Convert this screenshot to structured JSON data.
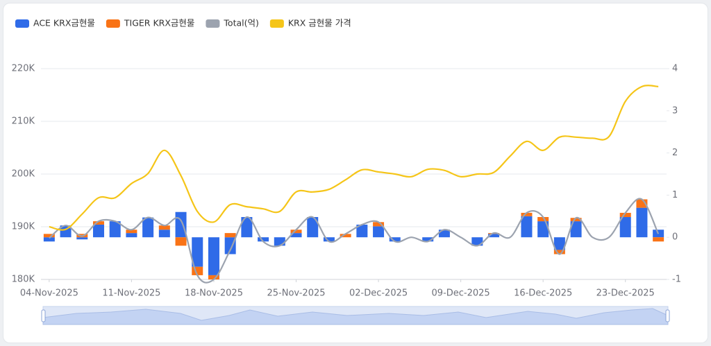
{
  "chart_data": {
    "type": "bar",
    "categories": [
      "04-Nov-2025",
      null,
      null,
      null,
      null,
      "11-Nov-2025",
      null,
      null,
      null,
      null,
      "18-Nov-2025",
      null,
      null,
      null,
      null,
      "25-Nov-2025",
      null,
      null,
      null,
      null,
      "02-Dec-2025",
      null,
      null,
      null,
      null,
      "09-Dec-2025",
      null,
      null,
      null,
      null,
      "16-Dec-2025",
      null,
      null,
      null,
      null,
      "23-Dec-2025",
      null,
      null
    ],
    "series": [
      {
        "name": "ACE KRX금현물",
        "type": "bar",
        "axis": "y2",
        "color": "#2f6be8",
        "values": [
          -0.1,
          0.28,
          -0.05,
          0.3,
          0.38,
          0.1,
          0.47,
          0.18,
          0.6,
          -0.7,
          -0.9,
          -0.4,
          0.48,
          -0.1,
          -0.2,
          0.1,
          0.48,
          -0.1,
          0,
          0.3,
          0.26,
          -0.1,
          0,
          -0.1,
          0.18,
          0,
          -0.2,
          0.08,
          0,
          0.5,
          0.38,
          -0.3,
          0.38,
          0,
          0,
          0.48,
          0.7,
          0.18
        ]
      },
      {
        "name": "TIGER KRX금현물",
        "type": "bar",
        "axis": "y2",
        "color": "#f97316",
        "values": [
          0.08,
          0,
          0.08,
          0.08,
          0,
          0.08,
          0,
          0.1,
          -0.2,
          -0.2,
          -0.1,
          0.1,
          0,
          0,
          0,
          0.08,
          0,
          0,
          0.08,
          0,
          0.1,
          0,
          0,
          0,
          0,
          0,
          0,
          0.02,
          0,
          0.08,
          0.1,
          -0.1,
          0.08,
          0,
          0,
          0.1,
          0.2,
          -0.1
        ]
      },
      {
        "name": "Total(억)",
        "type": "line",
        "axis": "y2",
        "color": "#9ca3af",
        "values": [
          -0.02,
          0.28,
          0.03,
          0.38,
          0.38,
          0.18,
          0.47,
          0.28,
          0.4,
          -0.9,
          -1.0,
          -0.3,
          0.48,
          -0.1,
          -0.2,
          0.18,
          0.48,
          -0.1,
          0.08,
          0.3,
          0.36,
          -0.1,
          0,
          -0.1,
          0.18,
          0,
          -0.2,
          0.1,
          0,
          0.58,
          0.48,
          -0.4,
          0.46,
          0,
          0,
          0.58,
          0.9,
          0.08
        ]
      },
      {
        "name": "KRX 금현물 가격",
        "type": "line",
        "color": "#f5c518",
        "values": [
          190000,
          189500,
          192400,
          195500,
          195500,
          198200,
          200100,
          204500,
          199700,
          192900,
          190900,
          194200,
          193800,
          193400,
          192900,
          196600,
          196600,
          197100,
          198900,
          200800,
          200400,
          200000,
          199500,
          200900,
          200700,
          199500,
          200000,
          200300,
          203400,
          206200,
          204500,
          207000,
          207000,
          206800,
          207100,
          213800,
          216600,
          216600
        ]
      }
    ],
    "ylim": [
      180000,
      220000
    ],
    "yticks": [
      {
        "value": 180000,
        "label": "180K"
      },
      {
        "value": 190000,
        "label": "190K"
      },
      {
        "value": 200000,
        "label": "200K"
      },
      {
        "value": 210000,
        "label": "210K"
      },
      {
        "value": 220000,
        "label": "220K"
      }
    ],
    "y2lim": [
      -1,
      4
    ],
    "y2ticks": [
      -1,
      0,
      1,
      2,
      3,
      4
    ],
    "grid": true,
    "legend": "top-left"
  }
}
